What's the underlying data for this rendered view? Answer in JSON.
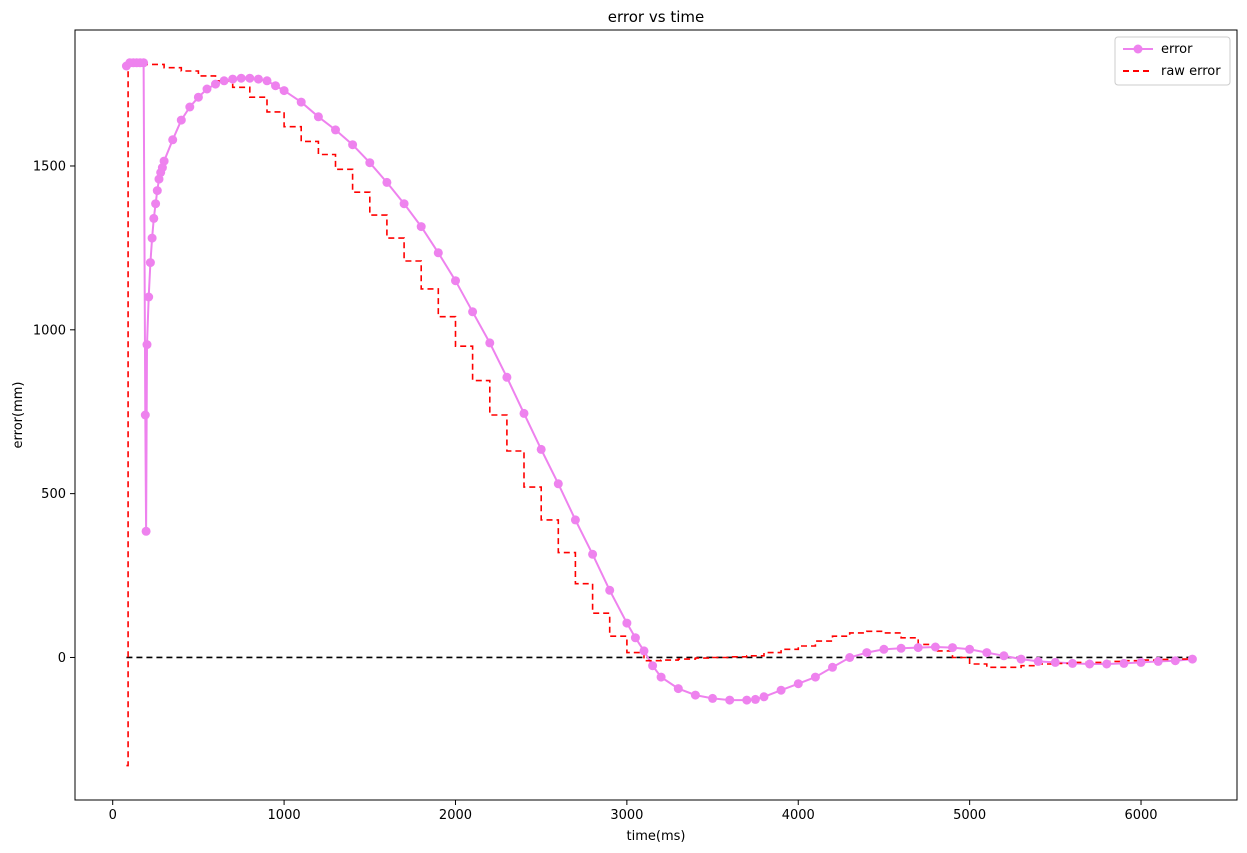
{
  "chart_data": {
    "type": "line",
    "title": "error vs time",
    "xlabel": "time(ms)",
    "ylabel": "error(mm)",
    "xlim": [
      -220,
      6560
    ],
    "ylim": [
      -435,
      1915
    ],
    "xticks": [
      0,
      1000,
      2000,
      3000,
      4000,
      5000,
      6000
    ],
    "yticks": [
      0,
      500,
      1000,
      1500
    ],
    "grid": false,
    "legend_position": "top-right",
    "colors": {
      "error": "#ee82ee",
      "raw_error": "#ff0000",
      "zero_line": "#000000"
    },
    "series": [
      {
        "name": "error",
        "style": "line-with-markers",
        "x": [
          80,
          100,
          120,
          140,
          160,
          180,
          190,
          195,
          200,
          210,
          220,
          230,
          240,
          250,
          260,
          270,
          280,
          290,
          300,
          350,
          400,
          450,
          500,
          550,
          600,
          650,
          700,
          750,
          800,
          850,
          900,
          950,
          1000,
          1100,
          1200,
          1300,
          1400,
          1500,
          1600,
          1700,
          1800,
          1900,
          2000,
          2100,
          2200,
          2300,
          2400,
          2500,
          2600,
          2700,
          2800,
          2900,
          3000,
          3050,
          3100,
          3150,
          3200,
          3300,
          3400,
          3500,
          3600,
          3700,
          3750,
          3800,
          3900,
          4000,
          4100,
          4200,
          4300,
          4400,
          4500,
          4600,
          4700,
          4800,
          4900,
          5000,
          5100,
          5200,
          5300,
          5400,
          5500,
          5600,
          5700,
          5800,
          5900,
          6000,
          6100,
          6200,
          6300
        ],
        "y": [
          1805,
          1815,
          1815,
          1815,
          1815,
          1815,
          740,
          385,
          955,
          1100,
          1205,
          1280,
          1340,
          1385,
          1425,
          1460,
          1480,
          1495,
          1515,
          1580,
          1640,
          1680,
          1710,
          1735,
          1750,
          1760,
          1765,
          1768,
          1768,
          1765,
          1760,
          1745,
          1730,
          1695,
          1650,
          1610,
          1565,
          1510,
          1450,
          1385,
          1315,
          1235,
          1150,
          1055,
          960,
          855,
          745,
          635,
          530,
          420,
          315,
          205,
          105,
          60,
          20,
          -25,
          -60,
          -95,
          -115,
          -125,
          -130,
          -130,
          -128,
          -120,
          -100,
          -80,
          -60,
          -30,
          0,
          15,
          25,
          28,
          30,
          32,
          30,
          25,
          15,
          5,
          -5,
          -12,
          -15,
          -18,
          -20,
          -20,
          -18,
          -15,
          -12,
          -10,
          -5
        ]
      },
      {
        "name": "raw error",
        "style": "dashed-step",
        "x": [
          80,
          90,
          100,
          200,
          300,
          400,
          500,
          600,
          700,
          800,
          900,
          1000,
          1100,
          1200,
          1300,
          1400,
          1500,
          1600,
          1700,
          1800,
          1900,
          2000,
          2100,
          2200,
          2300,
          2400,
          2500,
          2600,
          2700,
          2800,
          2900,
          3000,
          3100,
          3200,
          3300,
          3400,
          3500,
          3600,
          3700,
          3800,
          3900,
          4000,
          4100,
          4200,
          4300,
          4400,
          4500,
          4600,
          4700,
          4800,
          4900,
          5000,
          5100,
          5200,
          5300,
          5400,
          5500,
          5600,
          5700,
          5800,
          5900,
          6000,
          6100,
          6200,
          6300
        ],
        "y": [
          -330,
          1810,
          1815,
          1810,
          1800,
          1790,
          1775,
          1760,
          1740,
          1710,
          1665,
          1620,
          1575,
          1535,
          1490,
          1420,
          1350,
          1280,
          1210,
          1125,
          1040,
          950,
          845,
          740,
          630,
          520,
          420,
          320,
          225,
          135,
          65,
          15,
          -10,
          -8,
          -5,
          -2,
          0,
          2,
          5,
          15,
          25,
          35,
          50,
          65,
          75,
          80,
          75,
          60,
          40,
          20,
          0,
          -20,
          -30,
          -30,
          -25,
          -20,
          -18,
          -15,
          -15,
          -12,
          -10,
          -8,
          -6,
          -5,
          -5
        ]
      },
      {
        "name": "",
        "style": "dashed-reference",
        "x": [
          80,
          6300
        ],
        "y": [
          0,
          0
        ]
      }
    ]
  }
}
